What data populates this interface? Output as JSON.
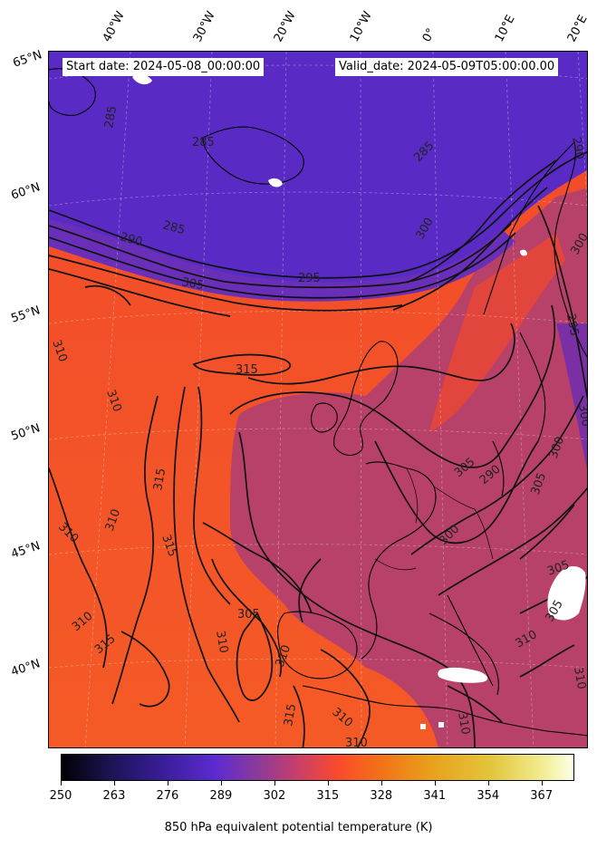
{
  "header": {
    "start_date": "Start date: 2024-05-08_00:00:00",
    "valid_date": "Valid_date: 2024-05-09T05:00:00.00"
  },
  "longitude_labels": [
    "40°W",
    "30°W",
    "20°W",
    "10°W",
    "0°",
    "10°E",
    "20°E"
  ],
  "latitude_labels": [
    "65°N",
    "60°N",
    "55°N",
    "50°N",
    "45°N",
    "40°N"
  ],
  "contour_labels": [
    "285",
    "285",
    "285",
    "285",
    "290",
    "295",
    "300",
    "305",
    "310",
    "310",
    "310",
    "310",
    "310",
    "315",
    "315",
    "315",
    "315",
    "305",
    "300",
    "305",
    "290",
    "305",
    "310",
    "310",
    "300",
    "310",
    "310",
    "315",
    "305",
    "310",
    "310",
    "310",
    "295",
    "290",
    "300",
    "300",
    "305"
  ],
  "colorbar": {
    "ticks": [
      "250",
      "263",
      "276",
      "289",
      "302",
      "315",
      "328",
      "341",
      "354",
      "367"
    ],
    "label": "850 hPa equivalent potential temperature (K)",
    "colormap": "CMRmap-like (black → purple → red → orange → yellow → white)"
  },
  "colors": {
    "cold": "#5a2bc4",
    "mid": "#b8416a",
    "warm": "#f04a2e",
    "contour": "#111111",
    "coast": "#000000"
  }
}
